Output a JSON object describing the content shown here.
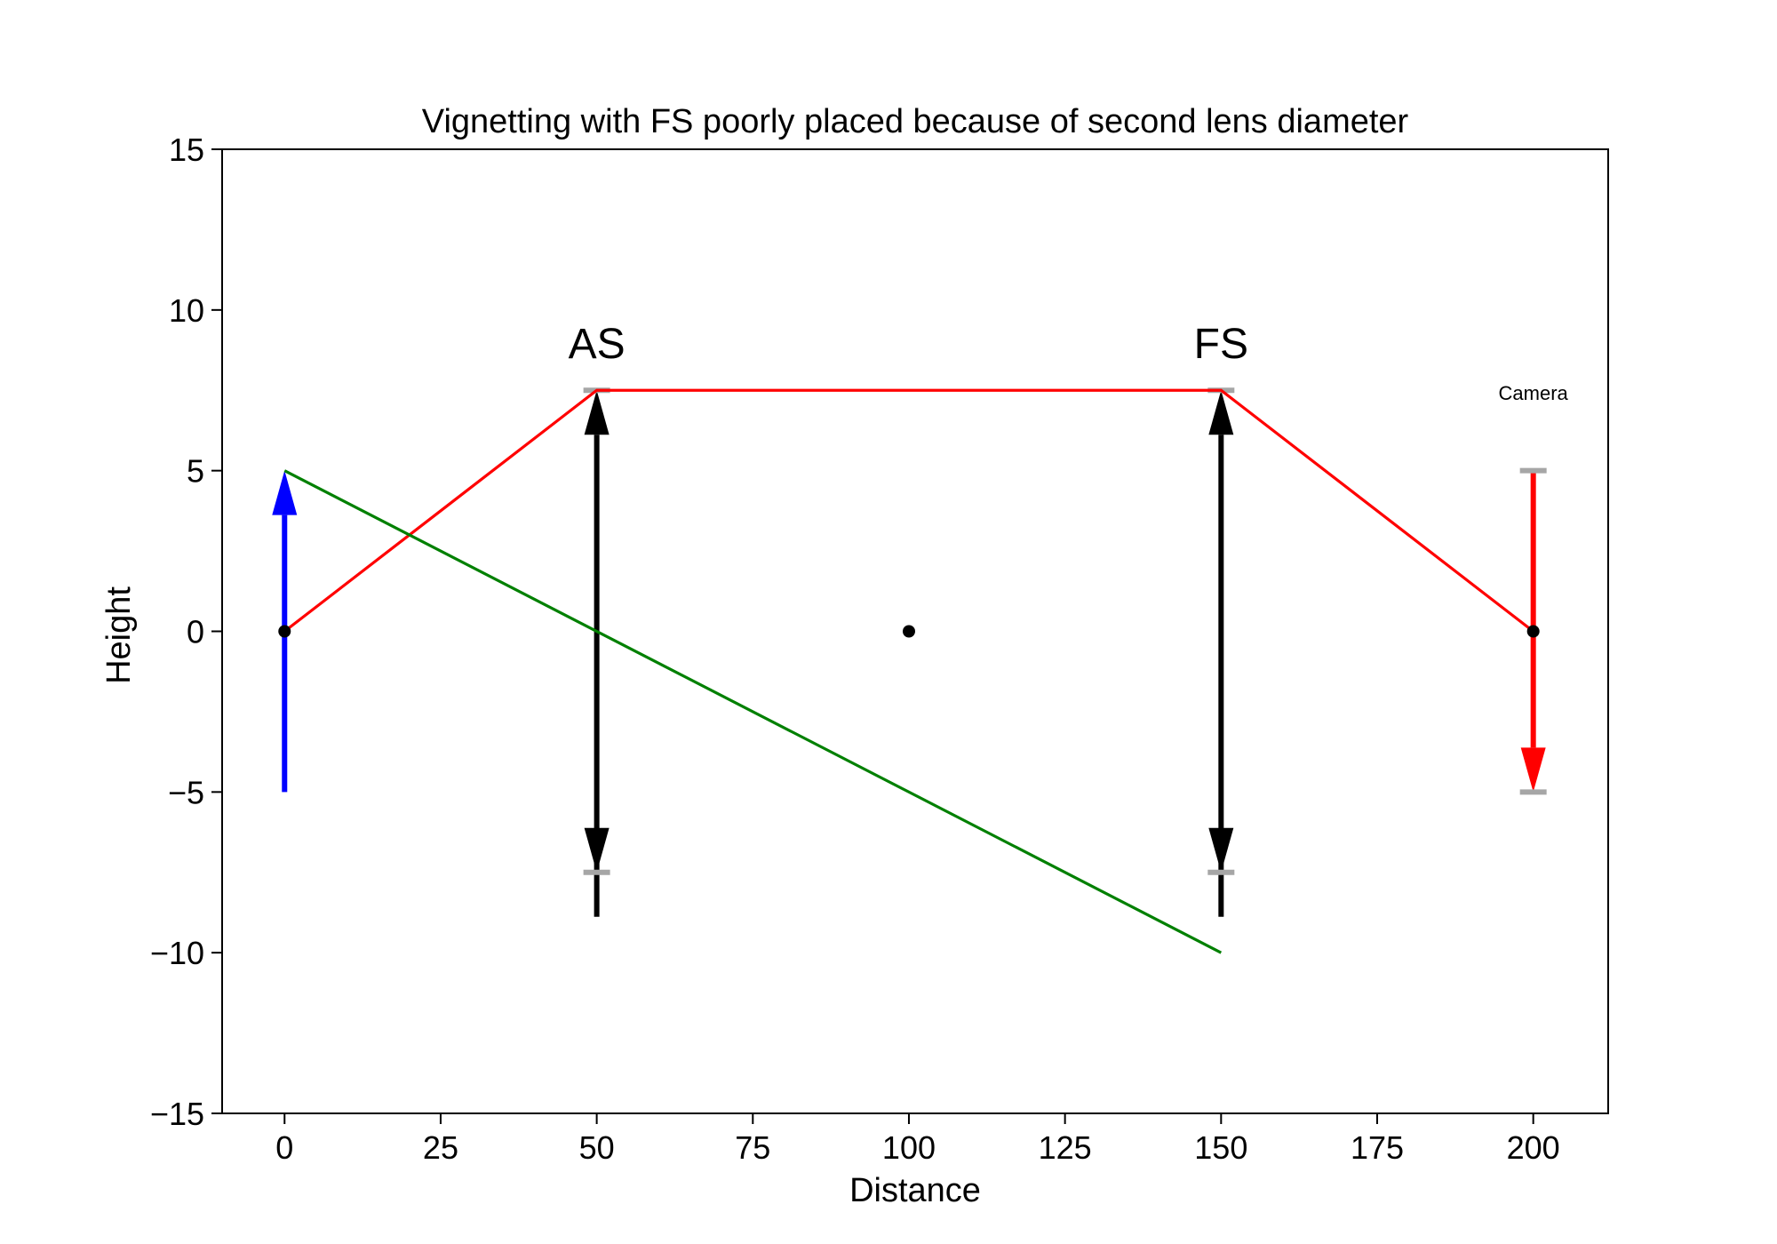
{
  "chart_data": {
    "type": "line",
    "title": "Vignetting with FS poorly placed because of second lens diameter",
    "xlabel": "Distance",
    "ylabel": "Height",
    "xlim": [
      -10,
      212
    ],
    "ylim": [
      -15,
      15
    ],
    "xticks": [
      0,
      25,
      50,
      75,
      100,
      125,
      150,
      175,
      200
    ],
    "yticks": [
      -15,
      -10,
      -5,
      0,
      5,
      10,
      15
    ],
    "xtick_labels": [
      "0",
      "25",
      "50",
      "75",
      "100",
      "125",
      "150",
      "175",
      "200"
    ],
    "ytick_labels": [
      "−15",
      "−10",
      "−5",
      "0",
      "5",
      "10",
      "15"
    ],
    "grid": false,
    "series": [
      {
        "name": "marginal-ray",
        "color": "#ff0000",
        "x": [
          0,
          50,
          150,
          200
        ],
        "y": [
          0,
          7.5,
          7.5,
          0
        ]
      },
      {
        "name": "chief-ray",
        "color": "#008000",
        "x": [
          0,
          150
        ],
        "y": [
          5,
          -10
        ]
      }
    ],
    "arrows": [
      {
        "name": "object-arrow",
        "color": "#0000ff",
        "x": 0,
        "y_from": -5,
        "y_to": 5,
        "heads": "end"
      },
      {
        "name": "as-lens-arrow",
        "color": "#000000",
        "x": 50,
        "y_from": -7.5,
        "y_to": 7.5,
        "heads": "both"
      },
      {
        "name": "fs-lens-arrow",
        "color": "#000000",
        "x": 150,
        "y_from": -7.5,
        "y_to": 7.5,
        "heads": "both"
      },
      {
        "name": "image-arrow",
        "color": "#ff0000",
        "x": 200,
        "y_from": 5,
        "y_to": -5,
        "heads": "end"
      }
    ],
    "aperture_marks": [
      {
        "x": 50,
        "y": 7.5
      },
      {
        "x": 50,
        "y": -7.5
      },
      {
        "x": 150,
        "y": 7.5
      },
      {
        "x": 150,
        "y": -7.5
      },
      {
        "x": 200,
        "y": 5
      },
      {
        "x": 200,
        "y": -5
      }
    ],
    "points": [
      {
        "x": 0,
        "y": 0
      },
      {
        "x": 100,
        "y": 0
      },
      {
        "x": 200,
        "y": 0
      }
    ],
    "annotations": [
      {
        "text": "AS",
        "x": 50,
        "y": 8.5,
        "size": "large"
      },
      {
        "text": "FS",
        "x": 150,
        "y": 8.5,
        "size": "large"
      },
      {
        "text": "Camera",
        "x": 200,
        "y": 7.2,
        "size": "small"
      }
    ],
    "colors": {
      "aperture_mark": "#a6a6a6",
      "axes": "#000000"
    }
  }
}
